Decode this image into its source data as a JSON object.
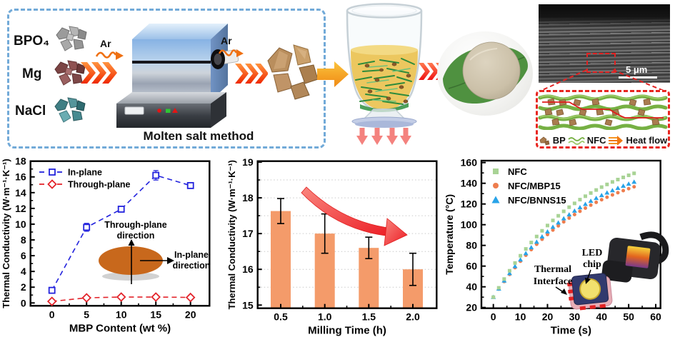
{
  "figure": {
    "synthesis": {
      "materials": [
        {
          "label": "BPO₄"
        },
        {
          "label": "Mg"
        },
        {
          "label": "NaCl"
        }
      ],
      "gas_left": "Ar",
      "gas_right": "Ar",
      "caption": "Molten salt method"
    },
    "sem": {
      "scale_label": "5 μm"
    },
    "structure_inset": {
      "legend": [
        {
          "label": "BP"
        },
        {
          "label": "NFC"
        },
        {
          "label": "Heat flow"
        }
      ]
    }
  },
  "chart_data": [
    {
      "type": "line",
      "xlabel": "MBP Content (wt %)",
      "ylabel": "Thermal Conductivity (W·m⁻¹·K⁻¹)",
      "xlim": [
        -3,
        23
      ],
      "ylim": [
        0,
        18
      ],
      "xticks": [
        0,
        5,
        10,
        15,
        20
      ],
      "yticks": [
        0,
        2,
        4,
        6,
        8,
        10,
        12,
        14,
        16,
        18
      ],
      "grid": false,
      "legend_position": "top-left",
      "series": [
        {
          "name": "In-plane",
          "color": "#2222dd",
          "marker": "open-square",
          "line": "dashed",
          "x": [
            0,
            5,
            10,
            15,
            20
          ],
          "values": [
            1.6,
            9.6,
            11.9,
            16.2,
            14.9
          ],
          "errors": [
            0.2,
            0.5,
            0.25,
            0.6,
            0.25
          ]
        },
        {
          "name": "Through-plane",
          "color": "#e3242b",
          "marker": "open-diamond",
          "line": "dashed",
          "x": [
            0,
            5,
            10,
            15,
            20
          ],
          "values": [
            0.2,
            0.65,
            0.75,
            0.75,
            0.7
          ],
          "errors": [
            0.15,
            0.2,
            0.2,
            0.2,
            0.2
          ]
        }
      ],
      "inset": {
        "labels": [
          "Through-plane direction",
          "In-plane direction"
        ],
        "disc_color": "#c8681c"
      }
    },
    {
      "type": "bar",
      "xlabel": "Milling Time (h)",
      "ylabel": "Thermal Conductivity (W·m⁻¹·K⁻¹)",
      "categories": [
        "0.5",
        "1.0",
        "1.5",
        "2.0"
      ],
      "values": [
        17.63,
        17.0,
        16.6,
        16.0
      ],
      "errors": [
        0.35,
        0.55,
        0.3,
        0.45
      ],
      "ylim": [
        15,
        19
      ],
      "yticks": [
        15,
        16,
        17,
        18,
        19
      ],
      "bar_color": "#f49b6a",
      "grid": "dotted-horizontal",
      "annotation": "decreasing-trend-arrow"
    },
    {
      "type": "scatter",
      "xlabel": "Time (s)",
      "ylabel": "Temperature (°C)",
      "xlim": [
        -5,
        62
      ],
      "ylim": [
        20,
        160
      ],
      "xticks": [
        0,
        10,
        20,
        30,
        40,
        50,
        60
      ],
      "yticks": [
        20,
        40,
        60,
        80,
        100,
        120,
        140,
        160
      ],
      "legend_position": "top-left",
      "x": [
        0,
        2,
        4,
        6,
        8,
        10,
        12,
        14,
        16,
        18,
        20,
        22,
        24,
        26,
        28,
        30,
        32,
        34,
        36,
        38,
        40,
        42,
        44,
        46,
        48,
        50,
        52
      ],
      "series": [
        {
          "name": "NFC",
          "color": "#a8d395",
          "marker": "square",
          "values": [
            30.0,
            39.0,
            47.5,
            55.5,
            63.0,
            70.0,
            76.6,
            82.8,
            88.6,
            94.1,
            99.2,
            104.1,
            108.6,
            112.9,
            116.9,
            120.6,
            124.2,
            127.5,
            130.6,
            133.5,
            136.3,
            138.9,
            141.3,
            143.6,
            145.7,
            147.7,
            149.6
          ]
        },
        {
          "name": "NFC/MBP15",
          "color": "#ee7d4e",
          "marker": "circle",
          "values": [
            30.0,
            37.8,
            45.1,
            52.0,
            58.5,
            64.7,
            70.5,
            75.9,
            81.1,
            85.9,
            90.5,
            94.8,
            98.9,
            102.7,
            106.4,
            109.8,
            113.0,
            116.0,
            118.9,
            121.6,
            124.1,
            126.5,
            128.8,
            130.9,
            132.9,
            134.8,
            136.6
          ]
        },
        {
          "name": "NFC/BNNS15",
          "color": "#28a3e8",
          "marker": "triangle",
          "values": [
            30.0,
            38.1,
            45.8,
            53.0,
            59.8,
            66.2,
            72.3,
            78.0,
            83.3,
            88.4,
            93.2,
            97.7,
            101.9,
            105.9,
            109.7,
            113.3,
            116.6,
            119.8,
            122.8,
            125.6,
            128.3,
            130.8,
            133.1,
            135.3,
            137.4,
            139.4,
            141.3
          ]
        }
      ],
      "annotations": [
        {
          "text": "Thermal Interface"
        },
        {
          "text": "LED chip"
        }
      ]
    }
  ]
}
